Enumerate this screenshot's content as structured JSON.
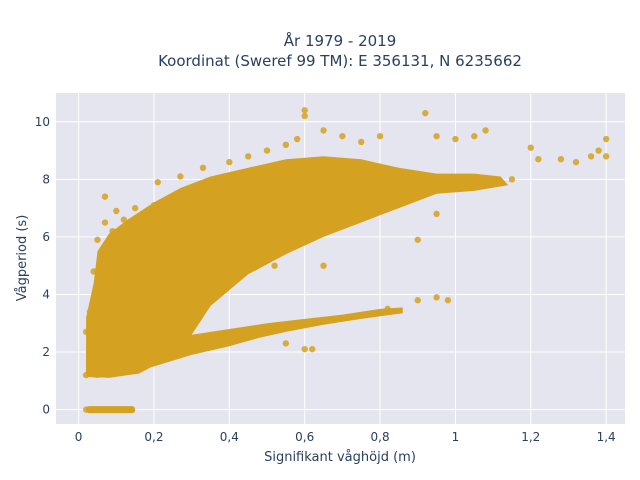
{
  "chart_data": {
    "type": "scatter",
    "title_line1": "År 1979 - 2019",
    "title_line2": "Koordinat (Sweref 99 TM): E 356131, N 6235662",
    "xlabel": "Signifikant våghöjd (m)",
    "ylabel": "Vågperiod (s)",
    "xlim": [
      -0.06,
      1.45
    ],
    "ylim": [
      -0.5,
      11.0
    ],
    "xticks": [
      0,
      0.2,
      0.4,
      0.6,
      0.8,
      1,
      1.2,
      1.4
    ],
    "xtick_labels": [
      "0",
      "0,2",
      "0,4",
      "0,6",
      "0,8",
      "1",
      "1,2",
      "1,4"
    ],
    "yticks": [
      0,
      2,
      4,
      6,
      8,
      10
    ],
    "ytick_labels": [
      "0",
      "2",
      "4",
      "6",
      "8",
      "10"
    ],
    "grid": true,
    "colors": {
      "marker": "#d4a220",
      "plot_bg": "#e5e5ef",
      "grid": "#ffffff",
      "text": "#2a3f5f"
    },
    "series": [
      {
        "color": "#d4a220",
        "points": [
          [
            0.02,
            0
          ],
          [
            0.05,
            0
          ],
          [
            0.08,
            0
          ],
          [
            0.11,
            0
          ],
          [
            0.14,
            0
          ],
          [
            0.02,
            1.2
          ],
          [
            0.02,
            2.7
          ],
          [
            0.03,
            3.4
          ],
          [
            0.04,
            4.8
          ],
          [
            0.05,
            5.9
          ],
          [
            0.07,
            6.5
          ],
          [
            0.07,
            7.4
          ],
          [
            0.09,
            6.2
          ],
          [
            0.1,
            6.9
          ],
          [
            0.12,
            6.6
          ],
          [
            0.15,
            7.0
          ],
          [
            0.2,
            7.1
          ],
          [
            0.21,
            7.9
          ],
          [
            0.27,
            8.1
          ],
          [
            0.33,
            8.4
          ],
          [
            0.4,
            8.6
          ],
          [
            0.45,
            8.8
          ],
          [
            0.5,
            9.0
          ],
          [
            0.55,
            9.2
          ],
          [
            0.58,
            9.4
          ],
          [
            0.6,
            10.4
          ],
          [
            0.6,
            10.2
          ],
          [
            0.65,
            9.7
          ],
          [
            0.7,
            9.5
          ],
          [
            0.75,
            9.3
          ],
          [
            0.8,
            9.5
          ],
          [
            0.92,
            10.3
          ],
          [
            0.95,
            9.5
          ],
          [
            1.0,
            9.4
          ],
          [
            1.05,
            9.5
          ],
          [
            1.08,
            9.7
          ],
          [
            1.2,
            9.1
          ],
          [
            1.22,
            8.7
          ],
          [
            1.28,
            8.7
          ],
          [
            1.32,
            8.6
          ],
          [
            1.36,
            8.8
          ],
          [
            1.4,
            9.4
          ],
          [
            1.4,
            8.8
          ],
          [
            1.38,
            9.0
          ],
          [
            1.15,
            8.0
          ],
          [
            0.9,
            5.9
          ],
          [
            0.95,
            6.8
          ],
          [
            0.65,
            5.0
          ],
          [
            0.6,
            6.0
          ],
          [
            0.52,
            5.0
          ],
          [
            0.98,
            3.8
          ],
          [
            0.95,
            3.9
          ],
          [
            0.9,
            3.8
          ],
          [
            0.82,
            3.5
          ],
          [
            0.6,
            2.1
          ],
          [
            0.55,
            2.3
          ],
          [
            0.62,
            2.1
          ]
        ]
      }
    ]
  }
}
